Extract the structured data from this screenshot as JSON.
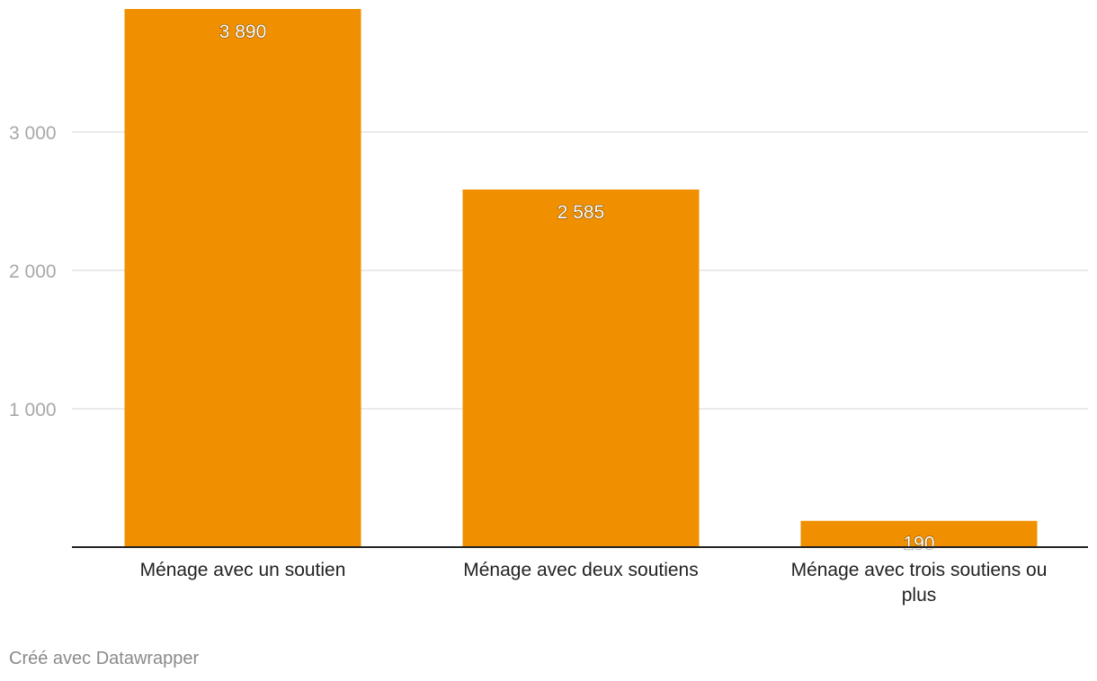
{
  "colors": {
    "bar": "#f09000",
    "grid": "#e3e3e3",
    "baseline": "#222222",
    "tick_text": "#a8a8a8"
  },
  "chart_data": {
    "type": "bar",
    "title": "",
    "xlabel": "",
    "ylabel": "",
    "categories": [
      [
        "Ménage avec un soutien"
      ],
      [
        "Ménage avec deux soutiens"
      ],
      [
        "Ménage avec trois soutiens ou",
        "plus"
      ]
    ],
    "values": [
      3890,
      2585,
      190
    ],
    "value_labels": [
      "3 890",
      "2 585",
      "190"
    ],
    "ylim": [
      0,
      3890
    ],
    "yticks": [
      1000,
      2000,
      3000
    ],
    "ytick_labels": [
      "1 000",
      "2 000",
      "3 000"
    ],
    "grid": true
  },
  "footer": {
    "credit": "Créé avec Datawrapper"
  }
}
